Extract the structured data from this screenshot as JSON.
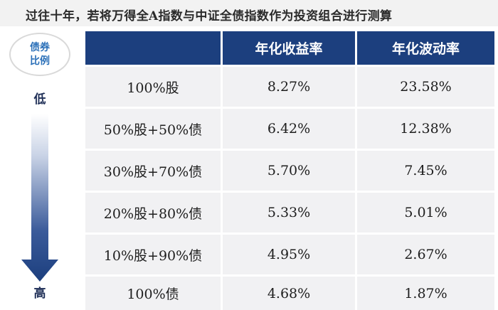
{
  "title": "过往十年，若将万得全A指数与中证全债指数作为投资组合进行测算",
  "ratio_label": {
    "line1": "债券",
    "line2": "比例"
  },
  "scale": {
    "low": "低",
    "high": "高"
  },
  "colors": {
    "header_bg": "#1c3f7e",
    "row_bg": "#f1f1f3",
    "arrow_top": "#ffffff",
    "arrow_bottom": "#1c3f7e",
    "accent": "#2a6fb8"
  },
  "table": {
    "headers": [
      "",
      "年化收益率",
      "年化波动率"
    ],
    "rows": [
      {
        "portfolio": "100%股",
        "return": "8.27%",
        "volatility": "23.58%"
      },
      {
        "portfolio": "50%股+50%债",
        "return": "6.42%",
        "volatility": "12.38%"
      },
      {
        "portfolio": "30%股+70%债",
        "return": "5.70%",
        "volatility": "7.45%"
      },
      {
        "portfolio": "20%股+80%债",
        "return": "5.33%",
        "volatility": "5.01%"
      },
      {
        "portfolio": "10%股+90%债",
        "return": "4.95%",
        "volatility": "2.67%"
      },
      {
        "portfolio": "100%债",
        "return": "4.68%",
        "volatility": "1.87%"
      }
    ]
  }
}
